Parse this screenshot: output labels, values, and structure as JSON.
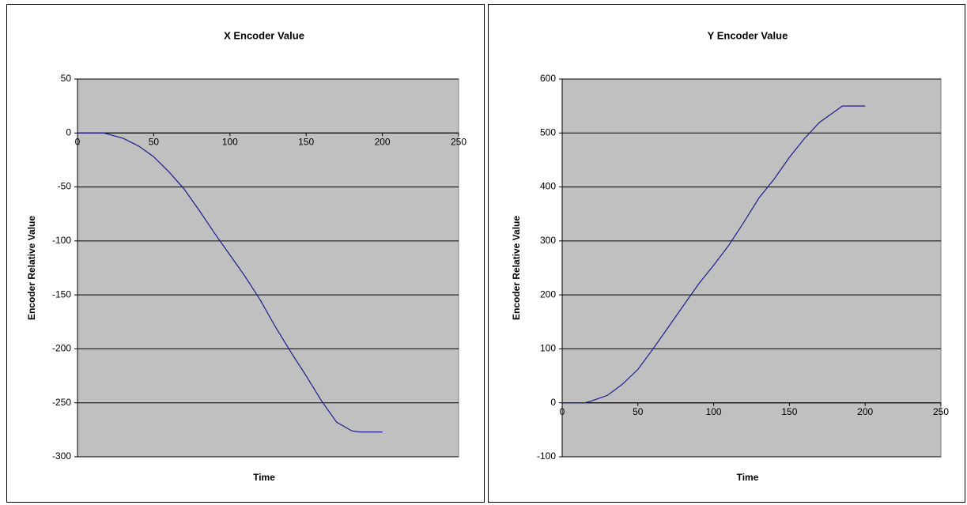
{
  "chart_data": [
    {
      "type": "line",
      "title": "X Encoder Value",
      "xlabel": "Time",
      "ylabel": "Encoder Relative Value",
      "x": [
        0,
        10,
        17,
        20,
        30,
        40,
        50,
        60,
        70,
        80,
        90,
        100,
        110,
        120,
        130,
        140,
        150,
        160,
        170,
        180,
        185,
        200
      ],
      "values": [
        0,
        0,
        0,
        -1,
        -5,
        -12,
        -22,
        -36,
        -52,
        -72,
        -93,
        -113,
        -133,
        -155,
        -180,
        -203,
        -225,
        -248,
        -268,
        -276,
        -277,
        -277
      ],
      "color": "#1c1c8c",
      "xlim": [
        0,
        250
      ],
      "xticks": [
        0,
        50,
        100,
        150,
        200,
        250
      ],
      "ylim": [
        -300,
        50
      ],
      "yticks": [
        -300,
        -250,
        -200,
        -150,
        -100,
        -50,
        0,
        50
      ],
      "grid": true
    },
    {
      "type": "line",
      "title": "Y Encoder Value",
      "xlabel": "Time",
      "ylabel": "Encoder Relative Value",
      "x": [
        0,
        10,
        15,
        20,
        30,
        40,
        50,
        60,
        70,
        80,
        90,
        100,
        110,
        120,
        130,
        140,
        150,
        160,
        170,
        180,
        185,
        200
      ],
      "values": [
        0,
        0,
        0,
        4,
        14,
        35,
        62,
        100,
        140,
        180,
        220,
        255,
        292,
        335,
        380,
        415,
        455,
        490,
        520,
        540,
        550,
        550
      ],
      "color": "#1c1c8c",
      "xlim": [
        0,
        250
      ],
      "xticks": [
        0,
        50,
        100,
        150,
        200,
        250
      ],
      "ylim": [
        -100,
        600
      ],
      "yticks": [
        -100,
        0,
        100,
        200,
        300,
        400,
        500,
        600
      ],
      "grid": true
    }
  ]
}
